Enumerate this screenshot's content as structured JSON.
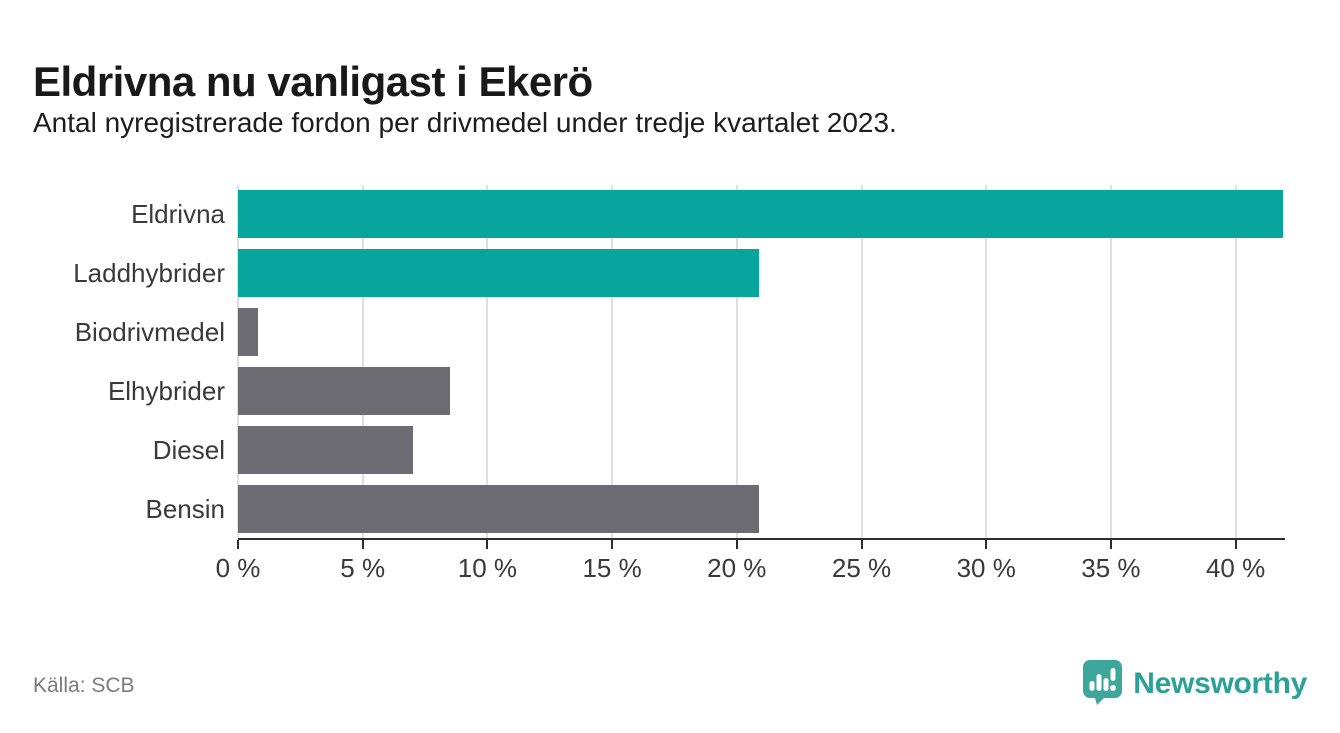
{
  "title": "Eldrivna nu vanligast i Ekerö",
  "subtitle": "Antal nyregistrerade fordon per drivmedel under tredje kvartalet 2023.",
  "source": "Källa: SCB",
  "brand": {
    "name": "Newsworthy",
    "icon": "newsworthy-speech-bubble-chart-icon",
    "icon_color": "#3ea79c",
    "text_color": "#2ba197"
  },
  "colors": {
    "highlight_bar": "#07a59c",
    "default_bar": "#6d6c72",
    "gridline": "#dfdfdf",
    "axis": "#2d2d2d"
  },
  "chart_data": {
    "type": "bar",
    "orientation": "horizontal",
    "title": "Eldrivna nu vanligast i Ekerö",
    "subtitle": "Antal nyregistrerade fordon per drivmedel under tredje kvartalet 2023.",
    "categories": [
      "Eldrivna",
      "Laddhybrider",
      "Biodrivmedel",
      "Elhybrider",
      "Diesel",
      "Bensin"
    ],
    "values": [
      41.9,
      20.9,
      0.8,
      8.5,
      7.0,
      20.9
    ],
    "unit": "%",
    "highlighted": [
      true,
      true,
      false,
      false,
      false,
      false
    ],
    "xlim": [
      0,
      41.9
    ],
    "x_tick_values": [
      0,
      5,
      10,
      15,
      20,
      25,
      30,
      35,
      40
    ],
    "x_ticks": [
      "0 %",
      "5 %",
      "10 %",
      "15 %",
      "20 %",
      "25 %",
      "30 %",
      "35 %",
      "40 %"
    ],
    "grid": true,
    "legend": false,
    "value_labels": false
  }
}
